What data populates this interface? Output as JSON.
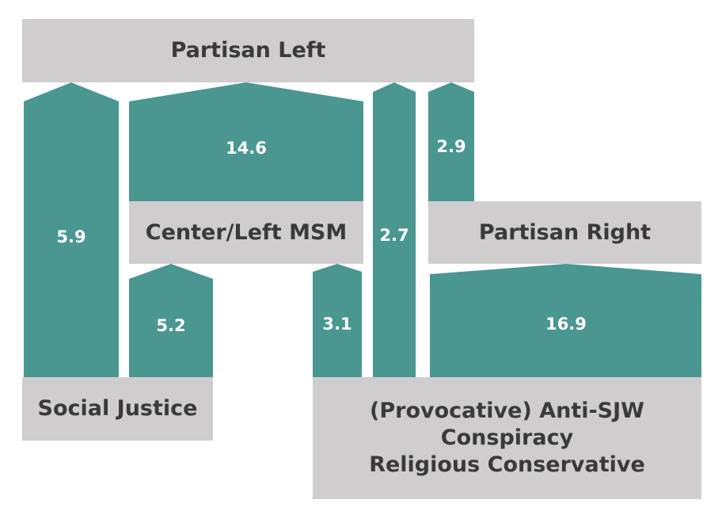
{
  "colors": {
    "flow": "#4a9690",
    "box": "#cfcdcd",
    "box_text": "#3a3a3a",
    "flow_text": "#ffffff"
  },
  "groups": {
    "partisan_left": "Partisan Left",
    "center_left_msm": "Center/Left MSM",
    "partisan_right": "Partisan Right",
    "social_justice": "Social Justice",
    "anti_sjw": [
      "(Provocative) Anti-SJW",
      "Conspiracy",
      "Religious Conservative"
    ]
  },
  "flows": [
    {
      "from": "partisan_left",
      "to": "social_justice",
      "value": "5.9"
    },
    {
      "from": "partisan_left",
      "to": "center_left_msm",
      "value": "14.6"
    },
    {
      "from": "partisan_left",
      "to": "anti_sjw",
      "value": "2.7"
    },
    {
      "from": "partisan_left",
      "to": "partisan_right",
      "value": "2.9"
    },
    {
      "from": "center_left_msm",
      "to": "social_justice",
      "value": "5.2"
    },
    {
      "from": "center_left_msm",
      "to": "anti_sjw",
      "value": "3.1"
    },
    {
      "from": "partisan_right",
      "to": "anti_sjw",
      "value": "16.9"
    }
  ]
}
